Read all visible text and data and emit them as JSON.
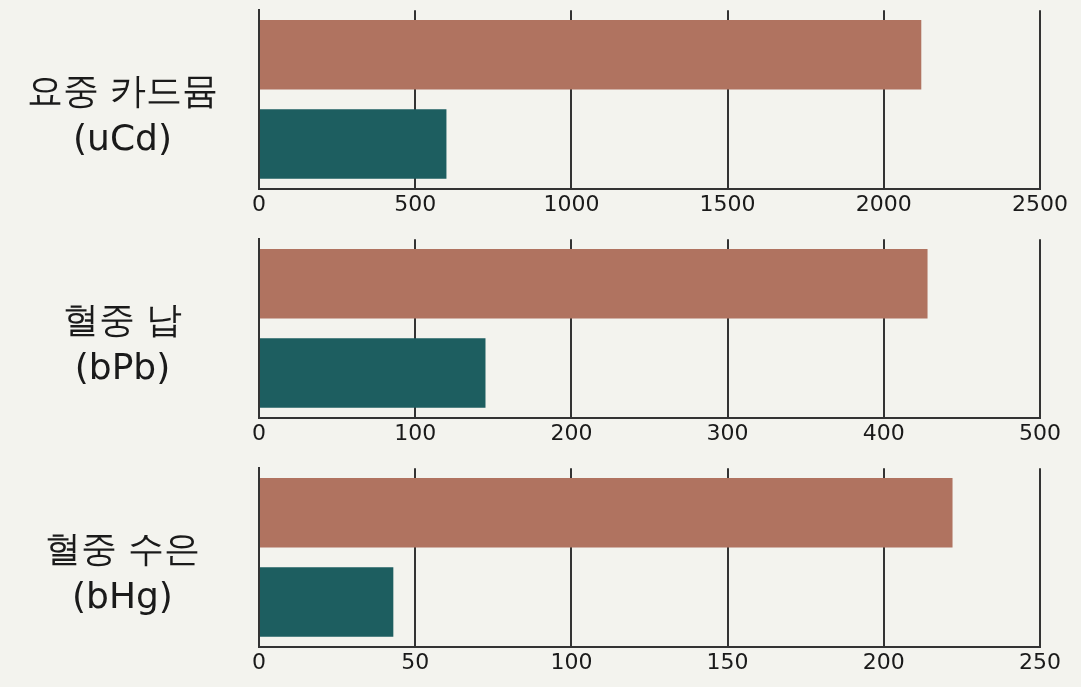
{
  "chart_data": [
    {
      "type": "bar",
      "orientation": "horizontal",
      "ylabel": "요중 카드뮴\n(uCd)",
      "categories": [
        null,
        null
      ],
      "values": [
        2120,
        600
      ],
      "colors": [
        "#b07360",
        "#1d5e60"
      ],
      "xlim": [
        0,
        2500
      ],
      "xticks": [
        0,
        500,
        1000,
        1500,
        2000,
        2500
      ],
      "grid": "x"
    },
    {
      "type": "bar",
      "orientation": "horizontal",
      "ylabel": "혈중 납\n(bPb)",
      "categories": [
        null,
        null
      ],
      "values": [
        428,
        145
      ],
      "colors": [
        "#b07360",
        "#1d5e60"
      ],
      "xlim": [
        0,
        500
      ],
      "xticks": [
        0,
        100,
        200,
        300,
        400,
        500
      ],
      "grid": "x"
    },
    {
      "type": "bar",
      "orientation": "horizontal",
      "ylabel": "혈중 수은\n(bHg)",
      "categories": [
        null,
        null
      ],
      "values": [
        222,
        43
      ],
      "colors": [
        "#b07360",
        "#1d5e60"
      ],
      "xlim": [
        0,
        250
      ],
      "xticks": [
        0,
        50,
        100,
        150,
        200,
        250
      ],
      "grid": "x"
    }
  ]
}
